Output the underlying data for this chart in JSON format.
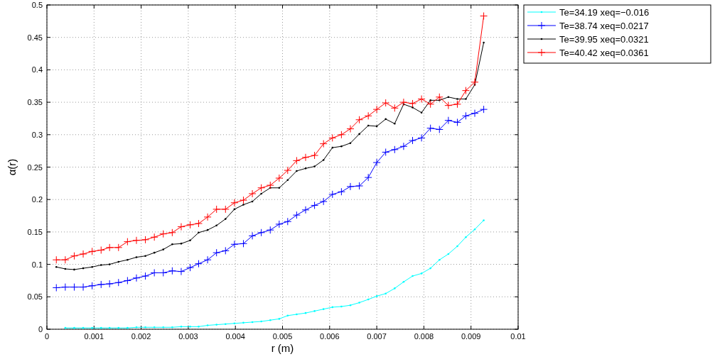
{
  "chart_data": {
    "type": "line",
    "xlabel": "r (m)",
    "ylabel": "α(r)",
    "x": [
      0.0002,
      0.00039,
      0.00058,
      0.00077,
      0.00096,
      0.00115,
      0.00133,
      0.00152,
      0.00171,
      0.0019,
      0.00209,
      0.00228,
      0.00247,
      0.00266,
      0.00285,
      0.00304,
      0.00322,
      0.00341,
      0.0036,
      0.00379,
      0.00398,
      0.00417,
      0.00436,
      0.00455,
      0.00474,
      0.00493,
      0.00511,
      0.0053,
      0.00549,
      0.00568,
      0.00587,
      0.00606,
      0.00625,
      0.00644,
      0.00663,
      0.00682,
      0.007,
      0.00719,
      0.00738,
      0.00757,
      0.00776,
      0.00795,
      0.00814,
      0.00833,
      0.00852,
      0.00871,
      0.00889,
      0.00908,
      0.00927
    ],
    "series": [
      {
        "name": "Te=34.19 xeq=−0.016",
        "color": "#00ffff",
        "values": [
          null,
          0.002,
          0.002,
          0.002,
          0.002,
          0.002,
          0.002,
          0.002,
          0.002,
          0.003,
          0.003,
          0.003,
          0.003,
          0.003,
          0.004,
          0.004,
          0.004,
          0.006,
          0.007,
          0.008,
          0.009,
          0.01,
          0.011,
          0.012,
          0.014,
          0.016,
          0.021,
          0.023,
          0.025,
          0.028,
          0.031,
          0.034,
          0.035,
          0.037,
          0.041,
          0.046,
          0.051,
          0.055,
          0.063,
          0.073,
          0.082,
          0.086,
          0.094,
          0.107,
          0.116,
          0.128,
          0.142,
          0.154,
          0.168
        ]
      },
      {
        "name": "Te=38.74 xeq=0.0217",
        "color": "#0000ff",
        "marker": "cross",
        "values": [
          0.064,
          0.065,
          0.065,
          0.065,
          0.067,
          0.069,
          0.07,
          0.072,
          0.075,
          0.079,
          0.082,
          0.087,
          0.087,
          0.09,
          0.089,
          0.095,
          0.101,
          0.107,
          0.118,
          0.121,
          0.131,
          0.132,
          0.144,
          0.149,
          0.153,
          0.162,
          0.166,
          0.176,
          0.184,
          0.191,
          0.197,
          0.208,
          0.212,
          0.22,
          0.221,
          0.234,
          0.257,
          0.273,
          0.277,
          0.282,
          0.291,
          0.295,
          0.31,
          0.308,
          0.322,
          0.319,
          0.329,
          0.333,
          0.339
        ]
      },
      {
        "name": "Te=39.95 xeq=0.0321",
        "color": "#000000",
        "values": [
          0.096,
          0.093,
          0.092,
          0.094,
          0.096,
          0.099,
          0.1,
          0.104,
          0.107,
          0.111,
          0.113,
          0.118,
          0.123,
          0.131,
          0.132,
          0.137,
          0.149,
          0.153,
          0.16,
          0.17,
          0.185,
          0.192,
          0.197,
          0.209,
          0.218,
          0.218,
          0.23,
          0.244,
          0.248,
          0.251,
          0.261,
          0.28,
          0.282,
          0.287,
          0.301,
          0.314,
          0.313,
          0.324,
          0.317,
          0.347,
          0.342,
          0.334,
          0.353,
          0.353,
          0.358,
          0.355,
          0.355,
          0.377,
          0.442
        ]
      },
      {
        "name": "Te=40.42 xeq=0.0361",
        "color": "#ff0000",
        "marker": "cross",
        "values": [
          0.107,
          0.107,
          0.113,
          0.116,
          0.12,
          0.122,
          0.126,
          0.126,
          0.135,
          0.137,
          0.138,
          0.142,
          0.147,
          0.149,
          0.158,
          0.161,
          0.163,
          0.173,
          0.185,
          0.185,
          0.195,
          0.199,
          0.209,
          0.218,
          0.222,
          0.233,
          0.245,
          0.26,
          0.265,
          0.268,
          0.286,
          0.295,
          0.3,
          0.309,
          0.323,
          0.329,
          0.339,
          0.349,
          0.341,
          0.35,
          0.348,
          0.355,
          0.347,
          0.358,
          0.345,
          0.347,
          0.368,
          0.381,
          0.483
        ]
      }
    ],
    "xlim": [
      0,
      0.01
    ],
    "xticks": [
      0,
      0.001,
      0.002,
      0.003,
      0.004,
      0.005,
      0.006,
      0.007,
      0.008,
      0.009,
      0.01
    ],
    "ylim": [
      0,
      0.5
    ],
    "yticks": [
      0,
      0.05,
      0.1,
      0.15,
      0.2,
      0.25,
      0.3,
      0.35,
      0.4,
      0.45,
      0.5
    ],
    "grid": true,
    "legend": "top right",
    "line_style": "solid"
  }
}
